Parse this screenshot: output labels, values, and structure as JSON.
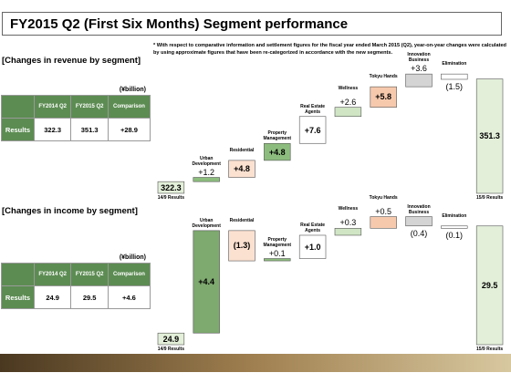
{
  "title": "FY2015 Q2 (First Six Months) Segment performance",
  "note": "* With respect to comparative information and settlement figures for the fiscal year ended March 2015 (Q2), year-on-year changes were calculated by using approximate figures that have been re-categorized in accordance with the new segments.",
  "revenue_section": {
    "heading": "[Changes in revenue by segment]",
    "unit": "(¥billion)",
    "table": {
      "header": [
        "FY2014 Q2",
        "FY2015 Q2",
        "Comparison"
      ],
      "rows": [
        [
          "Results",
          "322.3",
          "351.3",
          "+28.9"
        ]
      ]
    }
  },
  "income_section": {
    "heading": "[Changes in income by segment]",
    "unit": "(¥billion)",
    "table": {
      "header": [
        "FY2014 Q2",
        "FY2015 Q2",
        "Comparison"
      ],
      "rows": [
        [
          "Results",
          "24.9",
          "29.5",
          "+4.6"
        ]
      ]
    }
  },
  "chart_data": [
    {
      "type": "waterfall",
      "categories": [
        "14/9 Results",
        "Urban Development",
        "Residential",
        "Property Management",
        "Real Estate Agents",
        "Wellness",
        "Tokyu Hands",
        "Innovation Business",
        "Elimination",
        "15/9 Results"
      ],
      "values": [
        322.3,
        1.2,
        4.8,
        4.8,
        7.6,
        2.6,
        5.8,
        3.6,
        -1.5,
        351.3
      ],
      "value_labels": [
        "322.3",
        "+1.2",
        "+4.8",
        "+4.8",
        "+7.6",
        "+2.6",
        "+5.8",
        "+3.6",
        "(1.5)",
        "351.3"
      ],
      "colors": [
        "#e3efd9",
        "#8dbd7e",
        "#fbe1d0",
        "#8dbd7e",
        "#ffffff",
        "#cfe5c4",
        "#f6c9ad",
        "#d4d4d4",
        "#ffffff",
        "#e3efd9"
      ],
      "ylim": [
        319,
        353
      ]
    },
    {
      "type": "waterfall",
      "categories": [
        "14/9 Results",
        "Urban Development",
        "Residential",
        "Property Management",
        "Real Estate Agents",
        "Wellness",
        "Tokyu Hands",
        "Innovation Business",
        "Elimination",
        "15/9 Results"
      ],
      "values": [
        24.9,
        4.4,
        -1.3,
        0.1,
        1.0,
        0.3,
        0.5,
        -0.4,
        -0.1,
        29.5
      ],
      "value_labels": [
        "24.9",
        "+4.4",
        "(1.3)",
        "+0.1",
        "+1.0",
        "+0.3",
        "+0.5",
        "(0.4)",
        "(0.1)",
        "29.5"
      ],
      "colors": [
        "#e3efd9",
        "#7ea96f",
        "#fbe1d0",
        "#8dbd7e",
        "#ffffff",
        "#cfe5c4",
        "#f6c9ad",
        "#d4d4d4",
        "#ffffff",
        "#e3efd9"
      ],
      "ylim": [
        24.4,
        30
      ]
    }
  ]
}
